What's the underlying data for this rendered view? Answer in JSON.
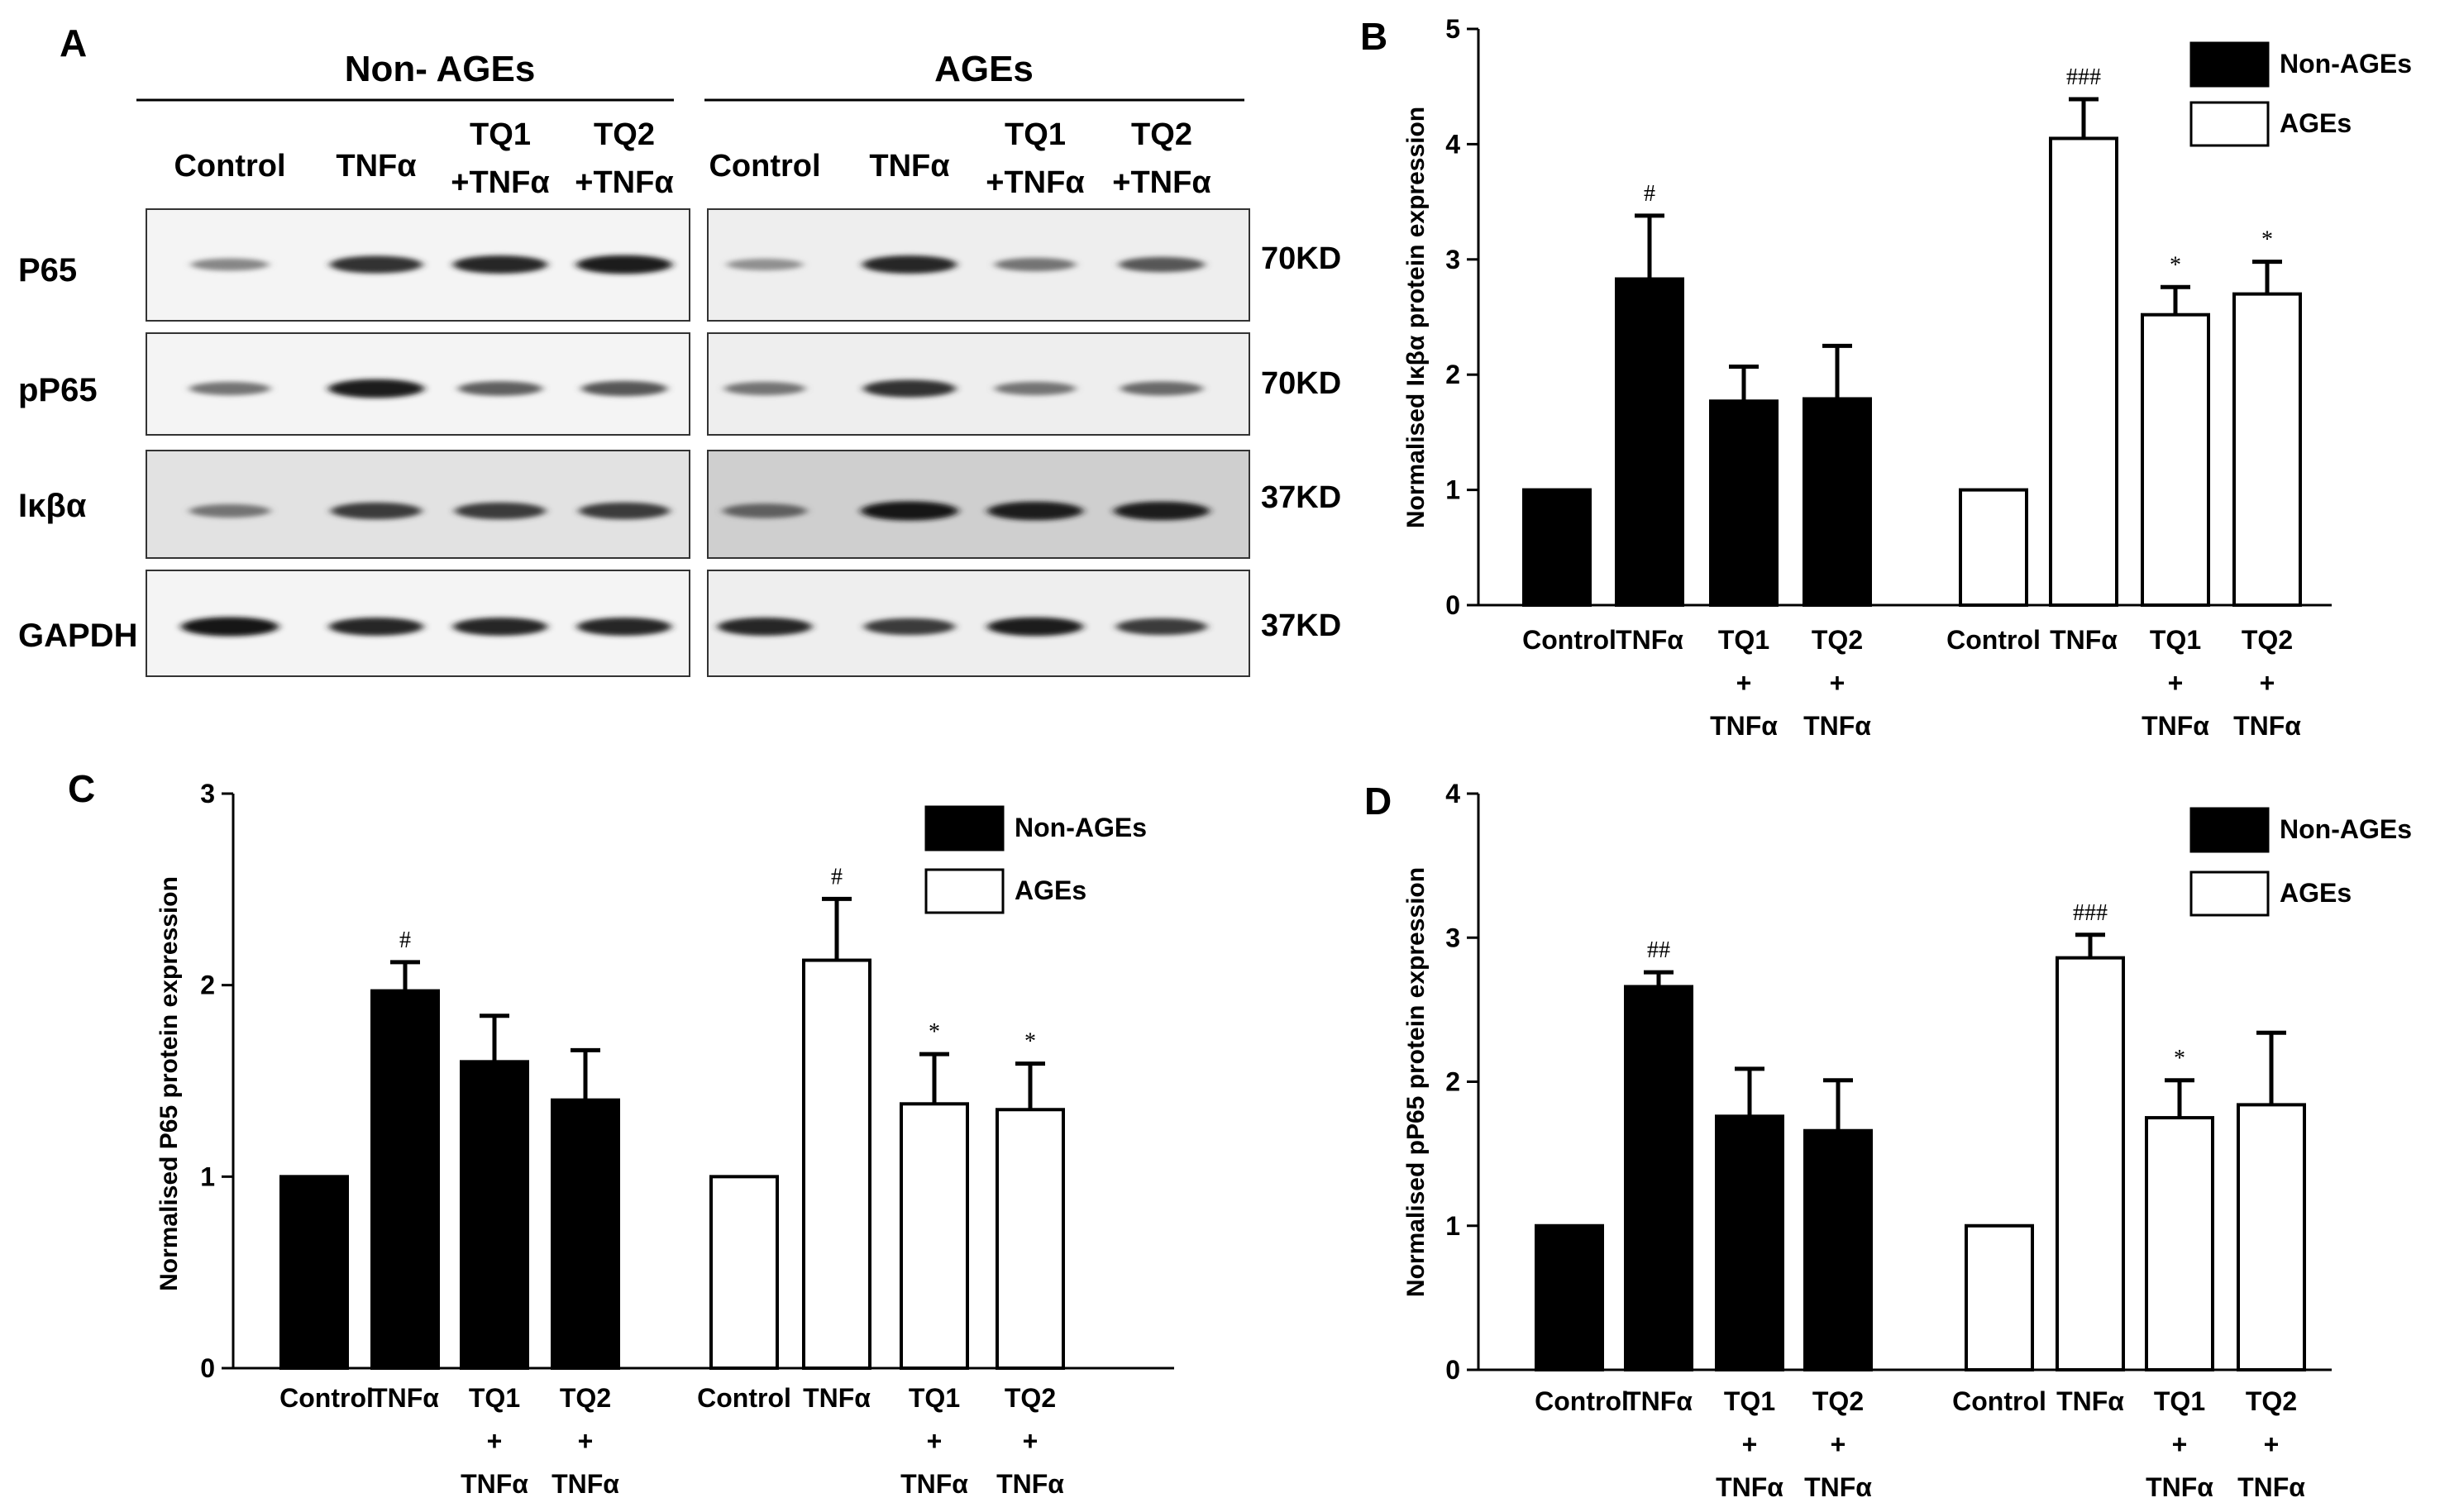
{
  "panelA": {
    "label": "A",
    "groups": [
      "Non- AGEs",
      "AGEs"
    ],
    "lanes": [
      [
        "Control"
      ],
      [
        "TNFα"
      ],
      [
        "TQ1",
        "+TNFα"
      ],
      [
        "TQ2",
        "+TNFα"
      ],
      [
        "Control"
      ],
      [
        "TNFα"
      ],
      [
        "TQ1",
        "+TNFα"
      ],
      [
        "TQ2",
        "+TNFα"
      ]
    ],
    "blots": [
      {
        "name": "P65",
        "kd": "70KD",
        "intensity": [
          0.35,
          0.8,
          0.85,
          0.9,
          0.3,
          0.85,
          0.45,
          0.6
        ]
      },
      {
        "name": "pP65",
        "kd": "70KD",
        "intensity": [
          0.45,
          0.9,
          0.55,
          0.6,
          0.45,
          0.8,
          0.45,
          0.5
        ]
      },
      {
        "name": "Iκβα",
        "kd": "37KD",
        "intensity": [
          0.45,
          0.75,
          0.75,
          0.75,
          0.55,
          0.95,
          0.9,
          0.9
        ]
      },
      {
        "name": "GAPDH",
        "kd": "37KD",
        "intensity": [
          0.95,
          0.85,
          0.85,
          0.85,
          0.85,
          0.75,
          0.9,
          0.75
        ]
      }
    ]
  },
  "chart_data": [
    {
      "panel": "B",
      "type": "bar",
      "ylabel": "Normalised Iκβα protein expression",
      "ylim": [
        0,
        5
      ],
      "yticks": [
        0,
        1,
        2,
        3,
        4,
        5
      ],
      "categories": [
        [
          "Control"
        ],
        [
          "TNFα"
        ],
        [
          "TQ1",
          "+",
          "TNFα"
        ],
        [
          "TQ2",
          "+",
          "TNFα"
        ]
      ],
      "legend": [
        "Non-AGEs",
        "AGEs"
      ],
      "series": [
        {
          "name": "Non-AGEs",
          "values": [
            1.0,
            2.83,
            1.77,
            1.79
          ],
          "errors": [
            0,
            0.55,
            0.3,
            0.46
          ],
          "sig": [
            "",
            "#",
            "",
            ""
          ]
        },
        {
          "name": "AGEs",
          "values": [
            1.0,
            4.05,
            2.52,
            2.7
          ],
          "errors": [
            0,
            0.34,
            0.24,
            0.28
          ],
          "sig": [
            "",
            "###",
            "*",
            "*"
          ]
        }
      ]
    },
    {
      "panel": "C",
      "type": "bar",
      "ylabel": "Normalised P65 protein expression",
      "ylim": [
        0,
        3
      ],
      "yticks": [
        0,
        1,
        2,
        3
      ],
      "categories": [
        [
          "Control"
        ],
        [
          "TNFα"
        ],
        [
          "TQ1",
          "+",
          "TNFα"
        ],
        [
          "TQ2",
          "+",
          "TNFα"
        ]
      ],
      "legend": [
        "Non-AGEs",
        "AGEs"
      ],
      "series": [
        {
          "name": "Non-AGEs",
          "values": [
            1.0,
            1.97,
            1.6,
            1.4
          ],
          "errors": [
            0,
            0.15,
            0.24,
            0.26
          ],
          "sig": [
            "",
            "#",
            "",
            ""
          ]
        },
        {
          "name": "AGEs",
          "values": [
            1.0,
            2.13,
            1.38,
            1.35
          ],
          "errors": [
            0,
            0.32,
            0.26,
            0.24
          ],
          "sig": [
            "",
            "#",
            "*",
            "*"
          ]
        }
      ]
    },
    {
      "panel": "D",
      "type": "bar",
      "ylabel": "Normalised pP65 protein expression",
      "ylim": [
        0,
        4
      ],
      "yticks": [
        0,
        1,
        2,
        3,
        4
      ],
      "categories": [
        [
          "Control"
        ],
        [
          "TNFα"
        ],
        [
          "TQ1",
          "+",
          "TNFα"
        ],
        [
          "TQ2",
          "+",
          "TNFα"
        ]
      ],
      "legend": [
        "Non-AGEs",
        "AGEs"
      ],
      "series": [
        {
          "name": "Non-AGEs",
          "values": [
            1.0,
            2.66,
            1.76,
            1.66
          ],
          "errors": [
            0,
            0.1,
            0.33,
            0.35
          ],
          "sig": [
            "",
            "##",
            "",
            ""
          ]
        },
        {
          "name": "AGEs",
          "values": [
            1.0,
            2.86,
            1.75,
            1.84
          ],
          "errors": [
            0,
            0.16,
            0.26,
            0.5
          ],
          "sig": [
            "",
            "###",
            "*",
            ""
          ]
        }
      ]
    }
  ]
}
